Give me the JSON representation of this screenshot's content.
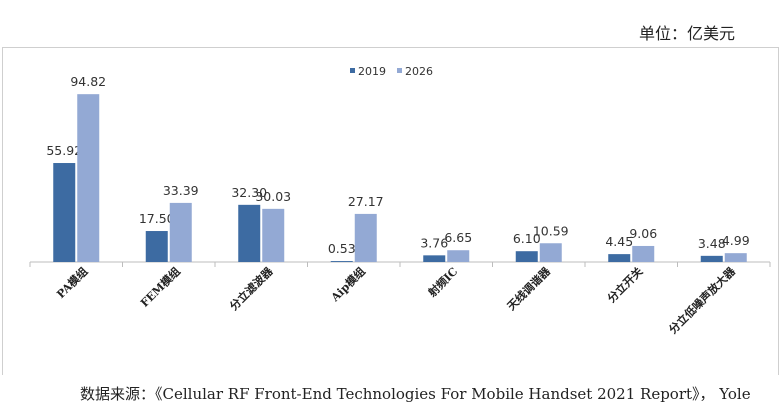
{
  "header": {
    "unit_label": "单位：亿美元"
  },
  "footer": {
    "source": "数据来源：《Cellular RF Front-End Technologies For Mobile Handset 2021 Report》， Yole"
  },
  "colors": {
    "series_2019": "#3d6ba2",
    "series_2026": "#93a9d4",
    "axis": "#bdbdbd"
  },
  "chart_data": {
    "type": "bar",
    "title": "",
    "xlabel": "",
    "ylabel": "",
    "categories": [
      "PA模组",
      "FEM模组",
      "分立滤波器",
      "Aip模组",
      "射频IC",
      "天线调谐器",
      "分立开关",
      "分立低噪声放大器"
    ],
    "series": [
      {
        "name": "2019",
        "values": [
          55.92,
          17.5,
          32.3,
          0.53,
          3.76,
          6.1,
          4.45,
          3.48
        ]
      },
      {
        "name": "2026",
        "values": [
          94.82,
          33.39,
          30.03,
          27.17,
          6.65,
          10.59,
          9.06,
          4.99
        ]
      }
    ],
    "labels": [
      [
        "55.92",
        "17.50",
        "32.30",
        "0.53",
        "3.76",
        "6.10",
        "4.45",
        "3.48"
      ],
      [
        "94.82",
        "33.39",
        "30.03",
        "27.17",
        "6.65",
        "10.59",
        "9.06",
        "4.99"
      ]
    ],
    "ylim": [
      0,
      100
    ],
    "legend_position": "top-center",
    "grid": false
  }
}
